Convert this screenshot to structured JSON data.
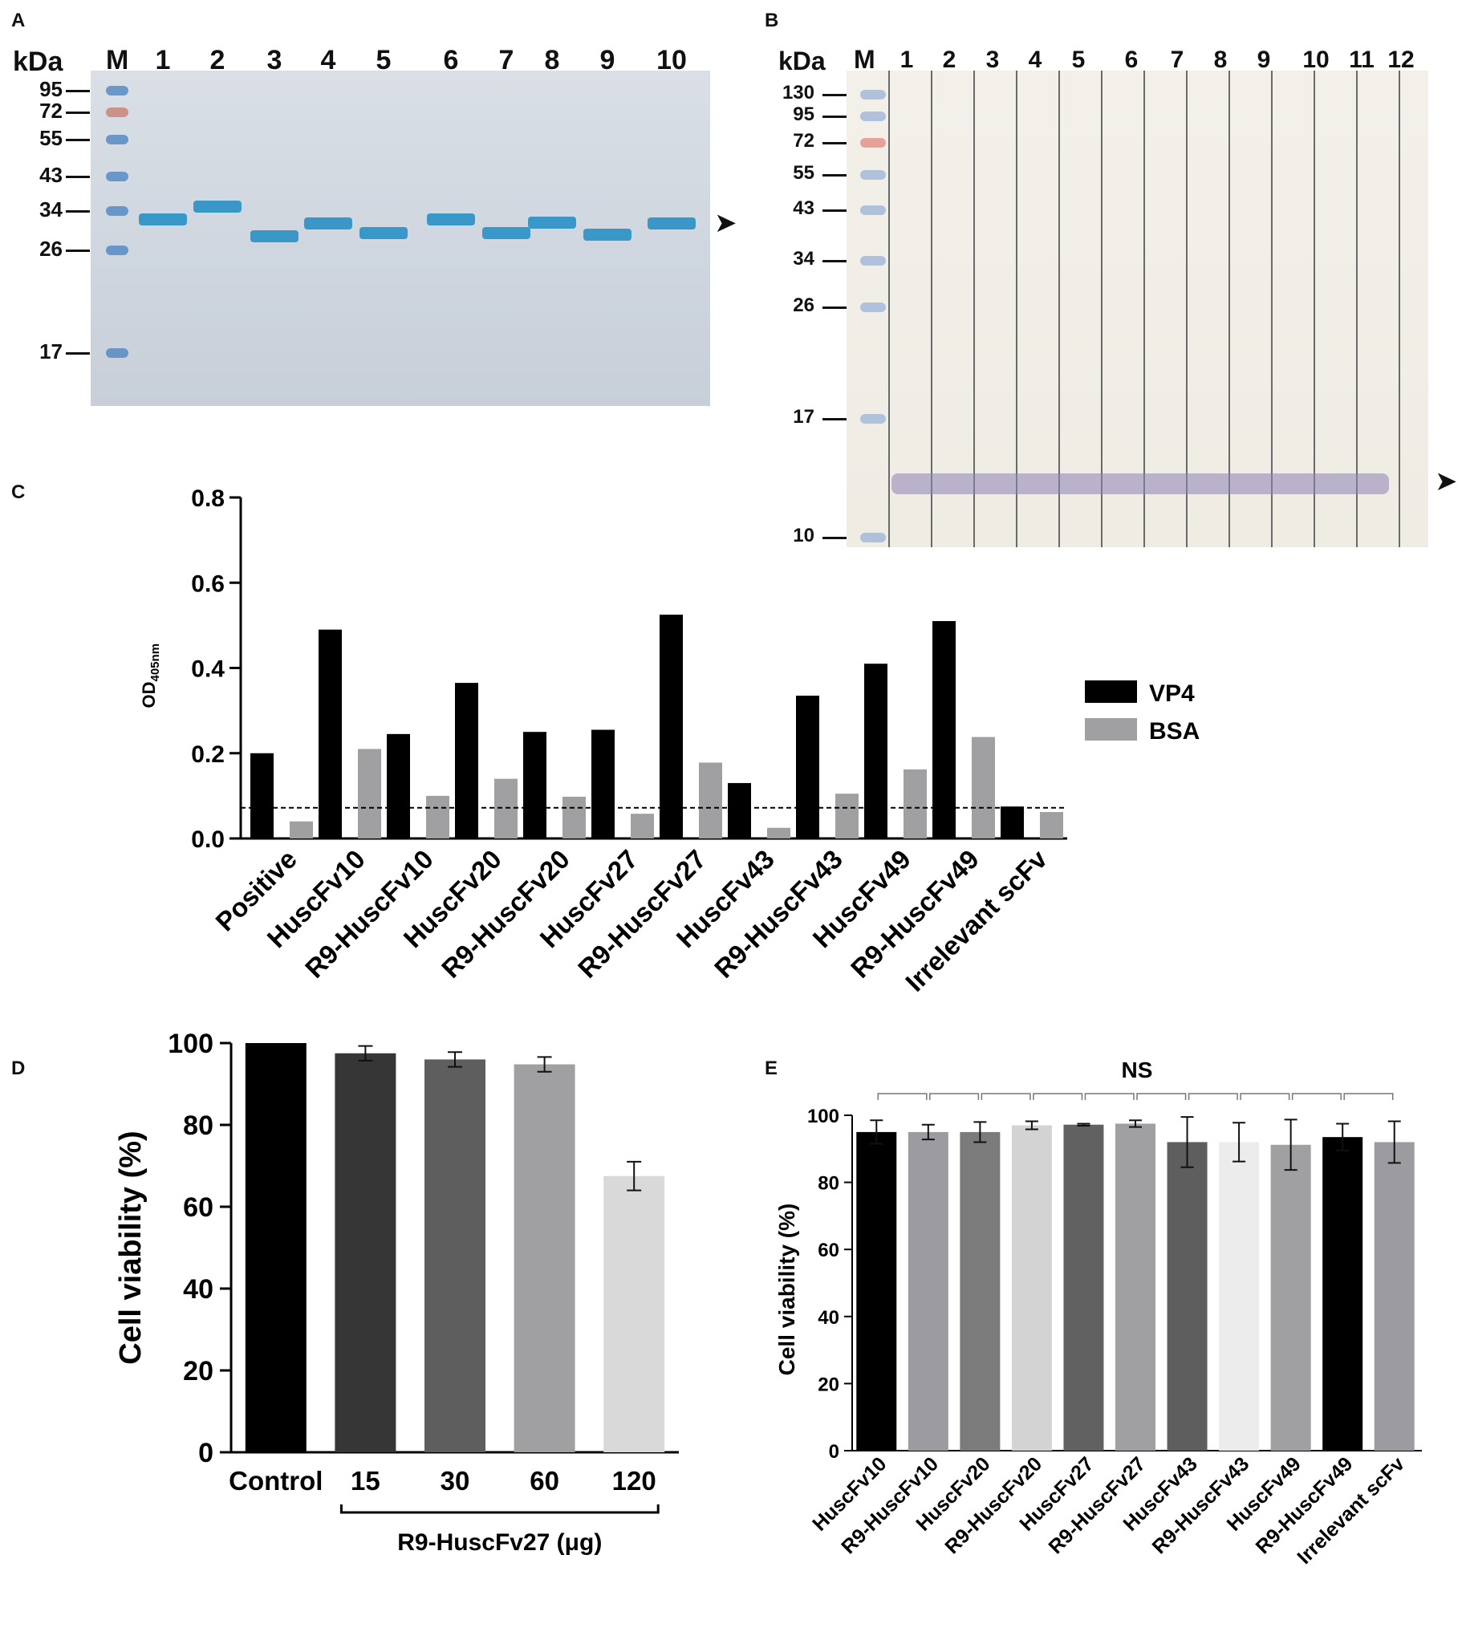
{
  "panel_letters": {
    "a": "A",
    "b": "B",
    "c": "C",
    "d": "D",
    "e": "E"
  },
  "gel_a": {
    "unit_label": "kDa",
    "marker_lane_label": "M",
    "lane_labels": [
      "1",
      "2",
      "3",
      "4",
      "5",
      "6",
      "7",
      "8",
      "9",
      "10"
    ],
    "mw_labels": [
      "95",
      "72",
      "55",
      "43",
      "34",
      "26",
      "17"
    ],
    "colors": {
      "band": "#2c93c6",
      "ladder_blue": "#4e86c3",
      "ladder_red": "#c9806f"
    }
  },
  "blot_b": {
    "unit_label": "kDa",
    "marker_lane_label": "M",
    "lane_labels": [
      "1",
      "2",
      "3",
      "4",
      "5",
      "6",
      "7",
      "8",
      "9",
      "10",
      "11",
      "12"
    ],
    "mw_labels": [
      "130",
      "95",
      "72",
      "55",
      "43",
      "34",
      "26",
      "17",
      "10"
    ],
    "colors": {
      "band": "#8d83b4",
      "ladder_blue": "#9fb5d8",
      "ladder_red": "#e28f84"
    }
  },
  "chart_data": [
    {
      "id": "C",
      "type": "bar",
      "title": "",
      "ylabel_main": "OD",
      "ylabel_sub": "405nm",
      "ylim": [
        0,
        0.8
      ],
      "yticks": [
        "0.0",
        "0.2",
        "0.4",
        "0.6",
        "0.8"
      ],
      "categories": [
        "Positive",
        "HuscFv10",
        "R9-HuscFv10",
        "HuscFv20",
        "R9-HuscFv20",
        "HuscFv27",
        "R9-HuscFv27",
        "HuscFv43",
        "R9-HuscFv43",
        "HuscFv49",
        "R9-HuscFv49",
        "Irrelevant scFv"
      ],
      "series": [
        {
          "name": "VP4",
          "color": "#000000",
          "values": [
            0.2,
            0.49,
            0.245,
            0.365,
            0.25,
            0.255,
            0.525,
            0.13,
            0.335,
            0.41,
            0.51,
            0.075
          ]
        },
        {
          "name": "BSA",
          "color": "#a0a0a3",
          "values": [
            0.04,
            0.21,
            0.1,
            0.14,
            0.098,
            0.058,
            0.178,
            0.025,
            0.105,
            0.162,
            0.238,
            0.062
          ]
        }
      ],
      "cutoff": 0.072,
      "legend_position": "right"
    },
    {
      "id": "D",
      "type": "bar",
      "ylabel": "Cell viability (%)",
      "ylim": [
        0,
        100
      ],
      "yticks": [
        "0",
        "20",
        "40",
        "60",
        "80",
        "100"
      ],
      "categories": [
        "Control",
        "15",
        "30",
        "60",
        "120"
      ],
      "values": [
        100,
        97.5,
        96,
        94.8,
        67.5
      ],
      "errors": [
        0,
        1.8,
        1.8,
        1.8,
        3.5
      ],
      "colors": [
        "#000000",
        "#363636",
        "#5e5e5e",
        "#a0a0a3",
        "#d9d9d9"
      ],
      "group_label": "R9-HuscFv27 (μg)"
    },
    {
      "id": "E",
      "type": "bar",
      "ylabel": "Cell viability (%)",
      "ylim": [
        0,
        100
      ],
      "yticks": [
        "0",
        "20",
        "40",
        "60",
        "80",
        "100"
      ],
      "categories": [
        "HuscFv10",
        "R9-HuscFv10",
        "HuscFv20",
        "R9-HuscFv20",
        "HuscFv27",
        "R9-HuscFv27",
        "HuscFv43",
        "R9-HuscFv43",
        "HuscFv49",
        "R9-HuscFv49",
        "Irrelevant scFv"
      ],
      "values": [
        95,
        95,
        95,
        97,
        97.2,
        97.5,
        92,
        92,
        91.2,
        93.5,
        92
      ],
      "errors": [
        3.5,
        2.2,
        3.0,
        1.2,
        0.3,
        1.0,
        7.5,
        5.8,
        7.5,
        4.0,
        6.2
      ],
      "colors": [
        "#000000",
        "#9c9ca0",
        "#7b7b7b",
        "#d3d3d3",
        "#616161",
        "#a0a0a3",
        "#5e5e5e",
        "#ececec",
        "#a0a0a3",
        "#000000",
        "#9c9ca0"
      ],
      "significance_label": "NS"
    }
  ]
}
